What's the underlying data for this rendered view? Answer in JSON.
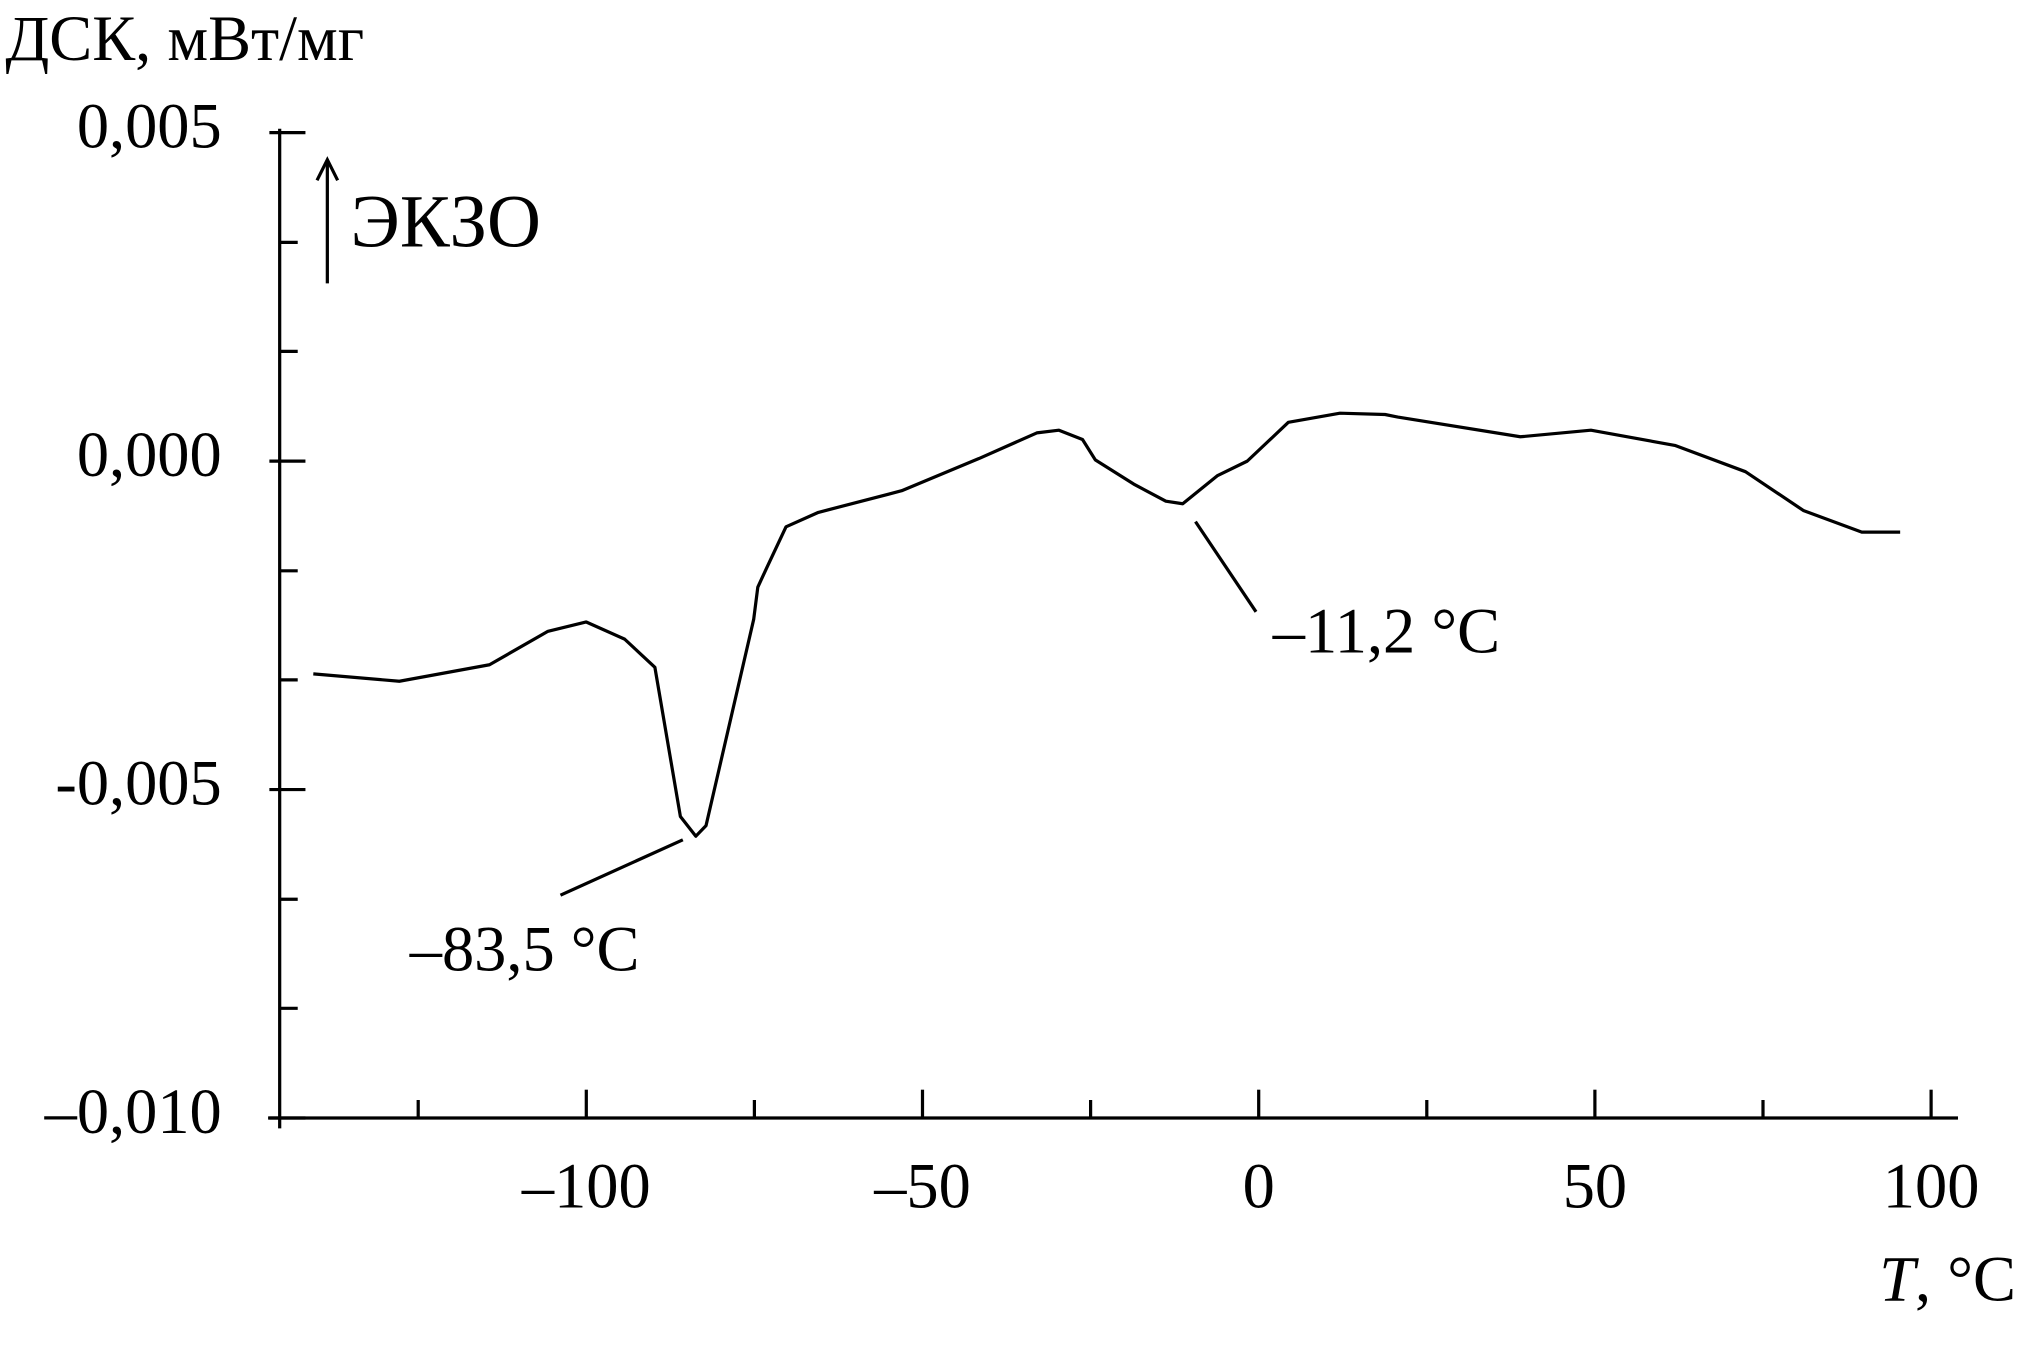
{
  "chart_data": {
    "type": "line",
    "ylabel": "ДСК, мВт/мг",
    "xlabel": {
      "symbol": "T",
      "unit": ", °C"
    },
    "exo_label": "ЭКЗО",
    "annotations": [
      "–83,5 °C",
      "–11,2 °C"
    ],
    "x": [
      -140.6,
      -127.8,
      -114.4,
      -105.7,
      -100.0,
      -94.3,
      -89.8,
      -86.0,
      -83.7,
      -82.2,
      -75.1,
      -74.5,
      -73.2,
      -70.3,
      -65.5,
      -53.1,
      -41.6,
      -33.0,
      -29.7,
      -26.2,
      -24.3,
      -18.6,
      -13.8,
      -11.3,
      -6.1,
      -1.7,
      4.4,
      12.1,
      18.8,
      20.7,
      38.9,
      49.4,
      61.9,
      72.4,
      81.0,
      89.7,
      95.4
    ],
    "series": [
      {
        "color": "#000000",
        "values": [
          -0.00324,
          -0.00335,
          -0.0031,
          -0.00259,
          -0.00245,
          -0.00271,
          -0.00314,
          -0.00541,
          -0.00571,
          -0.00555,
          -0.00241,
          -0.00192,
          -0.00163,
          -0.001,
          -0.00078,
          -0.00045,
          4e-05,
          0.00043,
          0.00047,
          0.00033,
          2e-05,
          -0.00035,
          -0.00061,
          -0.00065,
          -0.00022,
          0.0,
          0.00059,
          0.00073,
          0.00071,
          0.00067,
          0.00037,
          0.00047,
          0.00024,
          -0.00016,
          -0.00075,
          -0.00108,
          -0.00108
        ]
      }
    ],
    "xlim": [
      -145.6,
      104
    ],
    "ylim": [
      -0.01,
      0.005
    ],
    "xticks": [
      {
        "value": -100,
        "label": "–100"
      },
      {
        "value": -50,
        "label": "–50"
      },
      0,
      50,
      100
    ],
    "xminorticks": [
      -125,
      -75,
      -25,
      25,
      75
    ],
    "yticks": [
      {
        "value": -0.01,
        "label": "–0,010"
      },
      {
        "value": -0.005,
        "label": "-0,005"
      },
      {
        "value": 0,
        "label": "0,000"
      },
      {
        "value": 0.005,
        "label": "0,005"
      }
    ],
    "yminorticks": [
      -0.00833,
      -0.00667,
      -0.00333,
      -0.00167,
      0.00167,
      0.00333
    ]
  }
}
